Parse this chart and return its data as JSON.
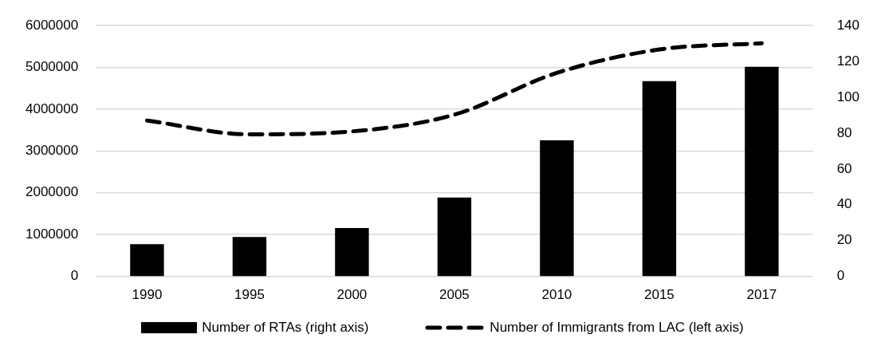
{
  "chart_data": {
    "type": "bar",
    "categories": [
      "1990",
      "1995",
      "2000",
      "2005",
      "2010",
      "2015",
      "2017"
    ],
    "series": [
      {
        "name": "Number of RTAs (right axis)",
        "axis": "y2",
        "color": "#000000",
        "values": [
          18,
          22,
          27,
          44,
          76,
          109,
          117
        ]
      },
      {
        "name": "Number of Immigrants from LAC (left axis)",
        "type": "line",
        "line_style": "dashed",
        "color": "#000000",
        "values": [
          3730000,
          3400000,
          3470000,
          3870000,
          4870000,
          5430000,
          5580000
        ]
      }
    ],
    "ylim": [
      0,
      6000000
    ],
    "yticks": [
      0,
      1000000,
      2000000,
      3000000,
      4000000,
      5000000,
      6000000
    ],
    "y2lim": [
      0,
      140
    ],
    "y2ticks": [
      0,
      20,
      40,
      60,
      80,
      100,
      120,
      140
    ],
    "grid": "y",
    "legend": "bottom",
    "marker": "none"
  }
}
